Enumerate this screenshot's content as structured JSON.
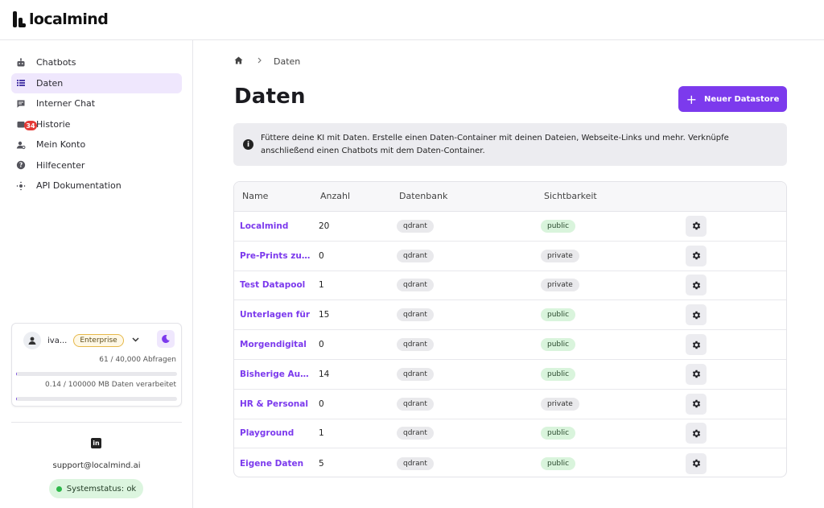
{
  "app": {
    "logo_text": "localmind"
  },
  "sidebar": {
    "items": [
      {
        "label": "Chatbots",
        "icon": "robot-icon",
        "active": false
      },
      {
        "label": "Daten",
        "icon": "list-icon",
        "active": true
      },
      {
        "label": "Interner Chat",
        "icon": "chat-icon",
        "active": false
      },
      {
        "label": "Historie",
        "icon": "history-icon",
        "active": false,
        "badge": "34"
      },
      {
        "label": "Mein Konto",
        "icon": "user-settings-icon",
        "active": false
      },
      {
        "label": "Hilfecenter",
        "icon": "help-icon",
        "active": false
      },
      {
        "label": "API Dokumentation",
        "icon": "api-icon",
        "active": false
      }
    ],
    "account": {
      "name": "iva...",
      "plan": "Enterprise",
      "requests_text": "61 / 40,000 Abfragen",
      "requests_fraction": 0.0015,
      "data_text": "0.14 / 100000 MB Daten verarbeitet",
      "data_fraction": 0.0001
    },
    "support_email": "support@localmind.ai",
    "system_status": "Systemstatus: ok"
  },
  "breadcrumb": {
    "current": "Daten"
  },
  "main": {
    "title": "Daten",
    "new_button_label": "Neuer Datastore",
    "info_text": "Füttere deine KI mit Daten. Erstelle einen Daten-Container mit deinen Dateien, Webseite-Links und mehr. Verknüpfe anschließend einen Chatbots mit dem Daten-Container."
  },
  "table": {
    "headers": {
      "name": "Name",
      "count": "Anzahl",
      "db": "Datenbank",
      "visibility": "Sichtbarkeit"
    },
    "rows": [
      {
        "name": "Localmind",
        "count": "20",
        "db": "qdrant",
        "visibility": "public"
      },
      {
        "name": "Pre-Prints zum...",
        "count": "0",
        "db": "qdrant",
        "visibility": "private"
      },
      {
        "name": "Test Datapool",
        "count": "1",
        "db": "qdrant",
        "visibility": "private"
      },
      {
        "name": "Unterlagen für",
        "count": "15",
        "db": "qdrant",
        "visibility": "public"
      },
      {
        "name": "Morgendigital",
        "count": "0",
        "db": "qdrant",
        "visibility": "public"
      },
      {
        "name": "Bisherige Ausfl...",
        "count": "14",
        "db": "qdrant",
        "visibility": "public"
      },
      {
        "name": "HR & Personal",
        "count": "0",
        "db": "qdrant",
        "visibility": "private"
      },
      {
        "name": "Playground",
        "count": "1",
        "db": "qdrant",
        "visibility": "public"
      },
      {
        "name": "Eigene Daten",
        "count": "5",
        "db": "qdrant",
        "visibility": "public"
      }
    ]
  },
  "colors": {
    "accent": "#7c3aed",
    "active_nav_bg": "#efe7fd",
    "public_chip": "#d9f4dc",
    "status_ok": "#2eb84a"
  }
}
